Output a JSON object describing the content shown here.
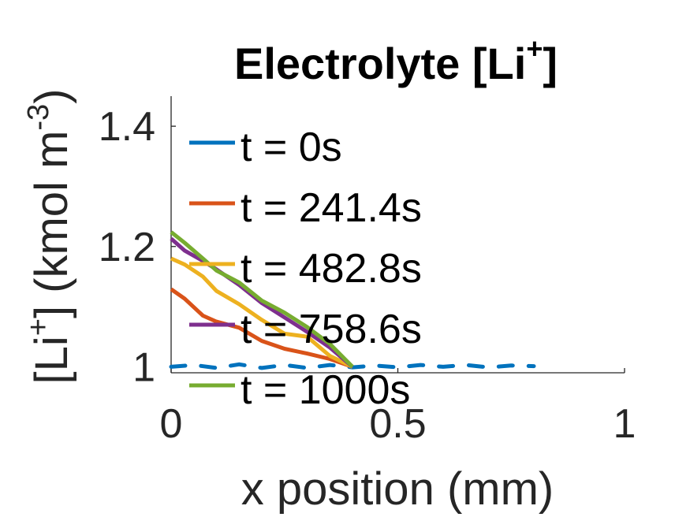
{
  "chart_data": {
    "type": "line",
    "title": "Electrolyte [Li",
    "title_superscript": "+",
    "title_suffix": "]",
    "xlabel": "x position (mm)",
    "ylabel_parts": [
      "[Li",
      "+",
      "] (kmol m",
      "-3",
      ")"
    ],
    "xlim": [
      0,
      1
    ],
    "ylim": [
      0.99,
      1.45
    ],
    "xticks": [
      0,
      0.5,
      1
    ],
    "xtick_labels": [
      "0",
      "0.5",
      "1"
    ],
    "yticks": [
      1,
      1.2,
      1.4
    ],
    "ytick_labels": [
      "1",
      "1.2",
      "1.4"
    ],
    "grid": false,
    "legend": "top-left",
    "series": [
      {
        "name": "t = 0s",
        "color": "#0072BD",
        "style": "dashed",
        "x": [
          0,
          0.05,
          0.1,
          0.15,
          0.2,
          0.25,
          0.3,
          0.35,
          0.4,
          0.45,
          0.5,
          0.55,
          0.6,
          0.65,
          0.7,
          0.75,
          0.8
        ],
        "y": [
          1.0,
          1.003,
          0.998,
          1.004,
          0.998,
          1.003,
          0.998,
          1.003,
          0.999,
          1.002,
          0.999,
          1.003,
          1.0,
          1.003,
          0.999,
          1.002,
          1.001
        ]
      },
      {
        "name": "t = 241.4s",
        "color": "#D95319",
        "style": "solid",
        "x": [
          0,
          0.03,
          0.07,
          0.1,
          0.15,
          0.2,
          0.25,
          0.3,
          0.35,
          0.4
        ],
        "y": [
          1.129,
          1.113,
          1.085,
          1.075,
          1.065,
          1.043,
          1.03,
          1.022,
          1.013,
          1.0
        ]
      },
      {
        "name": "t = 482.8s",
        "color": "#EDB120",
        "style": "solid",
        "x": [
          0,
          0.03,
          0.07,
          0.1,
          0.15,
          0.2,
          0.25,
          0.3,
          0.35,
          0.4
        ],
        "y": [
          1.18,
          1.17,
          1.15,
          1.126,
          1.104,
          1.078,
          1.055,
          1.05,
          1.018,
          1.0
        ]
      },
      {
        "name": "t = 758.6s",
        "color": "#7E2F8E",
        "style": "solid",
        "x": [
          0,
          0.03,
          0.07,
          0.1,
          0.15,
          0.2,
          0.25,
          0.3,
          0.35,
          0.4
        ],
        "y": [
          1.213,
          1.193,
          1.176,
          1.162,
          1.136,
          1.106,
          1.082,
          1.058,
          1.032,
          1.0
        ]
      },
      {
        "name": "t = 1000s",
        "color": "#77AC30",
        "style": "solid",
        "x": [
          0,
          0.03,
          0.07,
          0.1,
          0.15,
          0.2,
          0.25,
          0.3,
          0.35,
          0.4
        ],
        "y": [
          1.224,
          1.206,
          1.18,
          1.16,
          1.14,
          1.11,
          1.09,
          1.066,
          1.038,
          1.0
        ]
      }
    ]
  }
}
